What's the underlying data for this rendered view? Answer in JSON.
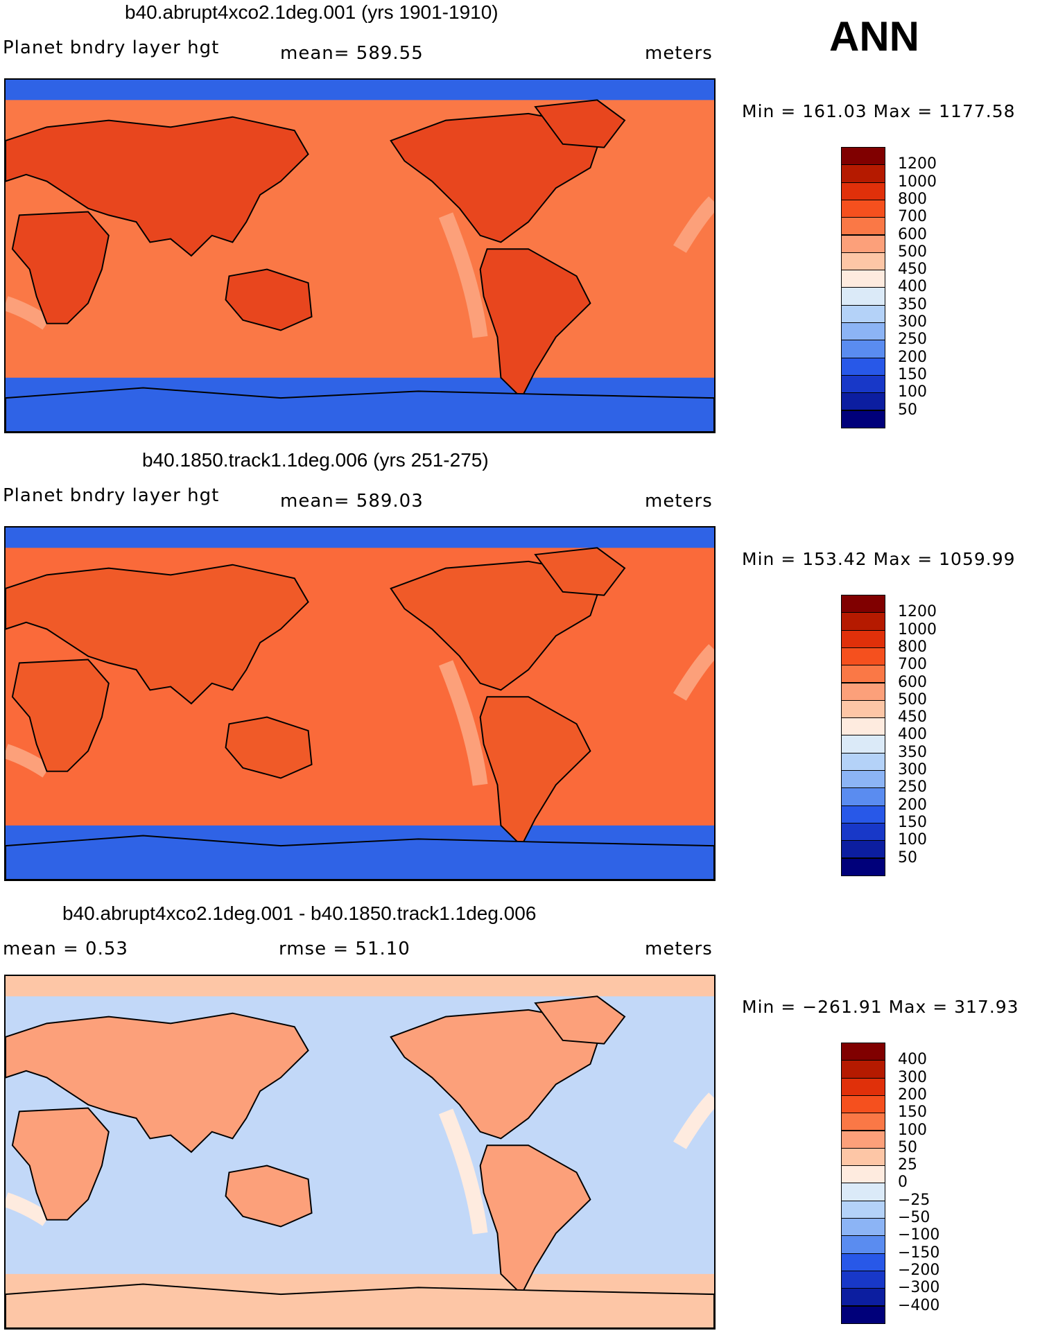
{
  "season": "ANN",
  "panels": [
    {
      "title": "b40.abrupt4xco2.1deg.001 (yrs 1901-1910)",
      "variable": "Planet bndry layer hgt",
      "stat": "mean=  589.55",
      "stat2": "",
      "units": "meters",
      "minmax": "Min  =  161.03  Max  =  1177.58",
      "levels": [
        "1200",
        "1000",
        "800",
        "700",
        "600",
        "500",
        "450",
        "400",
        "350",
        "300",
        "250",
        "200",
        "150",
        "100",
        "50"
      ],
      "colors": [
        "#800000",
        "#b51a00",
        "#e0300a",
        "#f5501e",
        "#fa7846",
        "#fca07a",
        "#fdc6a6",
        "#feebdf",
        "#dbeaf8",
        "#b4d2f8",
        "#8cb4f5",
        "#5a8cf0",
        "#2858e8",
        "#1838c8",
        "#0c1ea0",
        "#00007a"
      ],
      "ocean": "#fa7846",
      "land": "#e8461e",
      "polar": "#2f63e6",
      "coast": "#fca07a"
    },
    {
      "title": "b40.1850.track1.1deg.006 (yrs 251-275)",
      "variable": "Planet bndry layer hgt",
      "stat": "mean=  589.03",
      "stat2": "",
      "units": "meters",
      "minmax": "Min  =  153.42  Max  =  1059.99",
      "levels": [
        "1200",
        "1000",
        "800",
        "700",
        "600",
        "500",
        "450",
        "400",
        "350",
        "300",
        "250",
        "200",
        "150",
        "100",
        "50"
      ],
      "colors": [
        "#800000",
        "#b51a00",
        "#e0300a",
        "#f5501e",
        "#fa7846",
        "#fca07a",
        "#fdc6a6",
        "#feebdf",
        "#dbeaf8",
        "#b4d2f8",
        "#8cb4f5",
        "#5a8cf0",
        "#2858e8",
        "#1838c8",
        "#0c1ea0",
        "#00007a"
      ],
      "ocean": "#fa6a3a",
      "land": "#f05a28",
      "polar": "#2f63e6",
      "coast": "#fca07a"
    },
    {
      "title": "b40.abrupt4xco2.1deg.001 - b40.1850.track1.1deg.006",
      "variable": "mean =     0.53",
      "stat": "rmse  =    51.10",
      "stat2": "",
      "units": "meters",
      "minmax": "Min  =  −261.91  Max  =  317.93",
      "levels": [
        "400",
        "300",
        "200",
        "150",
        "100",
        "50",
        "25",
        "0",
        "−25",
        "−50",
        "−100",
        "−150",
        "−200",
        "−300",
        "−400"
      ],
      "colors": [
        "#800000",
        "#b51a00",
        "#e0300a",
        "#f5501e",
        "#fa7846",
        "#fca07a",
        "#fdc6a6",
        "#feebdf",
        "#dbeaf8",
        "#b4d2f8",
        "#8cb4f5",
        "#5a8cf0",
        "#2858e8",
        "#1838c8",
        "#0c1ea0",
        "#00007a"
      ],
      "ocean": "#c2d8f8",
      "land": "#fca07a",
      "polar": "#fdc6a6",
      "coast": "#feebdf"
    }
  ]
}
